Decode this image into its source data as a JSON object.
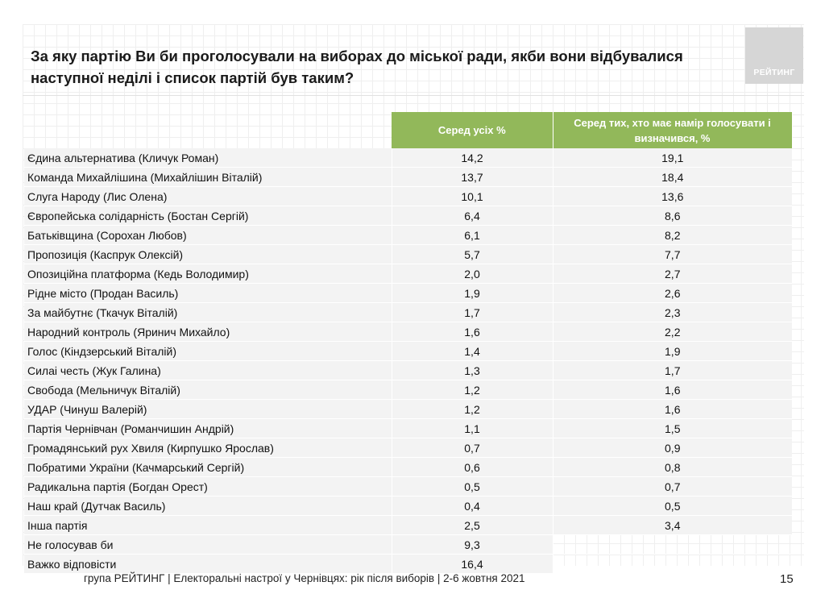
{
  "title": "За яку партію Ви би проголосували на виборах до міської ради, якби вони відбувалися наступної неділі і список партій був таким?",
  "logo": {
    "text": "РЕЙТИНГ"
  },
  "table": {
    "columns": [
      "Серед усіх %",
      "Серед тих, хто має намір голосувати і визначився, %"
    ],
    "rows": [
      {
        "party": "Єдина альтернатива (Кличук Роман)",
        "all": "14,2",
        "decided": "19,1"
      },
      {
        "party": "Команда Михайлішина (Михайлішин Віталій)",
        "all": "13,7",
        "decided": "18,4"
      },
      {
        "party": "Слуга Народу (Лис Олена)",
        "all": "10,1",
        "decided": "13,6"
      },
      {
        "party": "Європейська солідарність (Бостан Сергій)",
        "all": "6,4",
        "decided": "8,6"
      },
      {
        "party": "Батьківщина (Сорохан Любов)",
        "all": "6,1",
        "decided": "8,2"
      },
      {
        "party": "Пропозиція (Каспрук Олексій)",
        "all": "5,7",
        "decided": "7,7"
      },
      {
        "party": "Опозиційна платформа (Кедь Володимир)",
        "all": "2,0",
        "decided": "2,7"
      },
      {
        "party": "Рідне місто (Продан Василь)",
        "all": "1,9",
        "decided": "2,6"
      },
      {
        "party": "За майбутнє (Ткачук Віталій)",
        "all": "1,7",
        "decided": "2,3"
      },
      {
        "party": "Народний контроль (Яринич Михайло)",
        "all": "1,6",
        "decided": "2,2"
      },
      {
        "party": "Голос (Кіндзерський Віталій)",
        "all": "1,4",
        "decided": "1,9"
      },
      {
        "party": "Силаі честь (Жук Галина)",
        "all": "1,3",
        "decided": "1,7"
      },
      {
        "party": "Свобода (Мельничук Віталій)",
        "all": "1,2",
        "decided": "1,6"
      },
      {
        "party": "УДАР (Чинуш Валерій)",
        "all": "1,2",
        "decided": "1,6"
      },
      {
        "party": "Партія Чернівчан (Романчишин Андрій)",
        "all": "1,1",
        "decided": "1,5"
      },
      {
        "party": "Громадянський рух Хвиля (Кирпушко Ярослав)",
        "all": "0,7",
        "decided": "0,9"
      },
      {
        "party": "Побратими України (Качмарський Сергій)",
        "all": "0,6",
        "decided": "0,8"
      },
      {
        "party": "Радикальна партія (Богдан Орест)",
        "all": "0,5",
        "decided": "0,7"
      },
      {
        "party": "Наш край (Дутчак Василь)",
        "all": "0,4",
        "decided": "0,5"
      },
      {
        "party": "Інша партія",
        "all": "2,5",
        "decided": "3,4"
      },
      {
        "party": "Не голосував би",
        "all": "9,3",
        "decided": ""
      },
      {
        "party": "Важко відповісти",
        "all": "16,4",
        "decided": ""
      }
    ]
  },
  "footer": {
    "text": "група РЕЙТИНГ  | Електоральні настрої у Чернівцях: рік після виборів | 2-6 жовтня 2021",
    "page": "15"
  },
  "colors": {
    "header_green": "#92b85a",
    "row_bg": "#f3f3f3",
    "logo_bg": "#d6d6d6"
  }
}
